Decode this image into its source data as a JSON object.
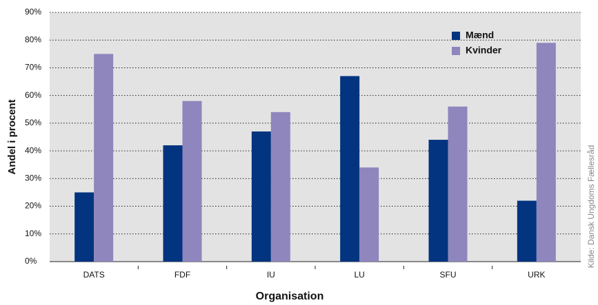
{
  "chart_data": {
    "type": "bar",
    "x_label": "Organisation",
    "y_label": "Andel i procent",
    "source": "Kilde: Dansk Ungdoms Fællesråd",
    "categories": [
      "DATS",
      "FDF",
      "IU",
      "LU",
      "SFU",
      "URK"
    ],
    "series": [
      {
        "name": "Mænd",
        "color": "#023480",
        "values": [
          25,
          42,
          47,
          67,
          44,
          22
        ]
      },
      {
        "name": "Kvinder",
        "color": "#8e86bd",
        "values": [
          75,
          58,
          54,
          34,
          56,
          79
        ]
      }
    ],
    "ylim": [
      0,
      90
    ],
    "yticks": [
      {
        "value": 0,
        "label": "0%"
      },
      {
        "value": 10,
        "label": "10%"
      },
      {
        "value": 20,
        "label": "20%"
      },
      {
        "value": 30,
        "label": "30%"
      },
      {
        "value": 40,
        "label": "40%"
      },
      {
        "value": 50,
        "label": "50%"
      },
      {
        "value": 60,
        "label": "60%"
      },
      {
        "value": 70,
        "label": "70%"
      },
      {
        "value": 80,
        "label": "80%"
      },
      {
        "value": 90,
        "label": "90%"
      }
    ],
    "grid": true,
    "legend": "top-right"
  }
}
